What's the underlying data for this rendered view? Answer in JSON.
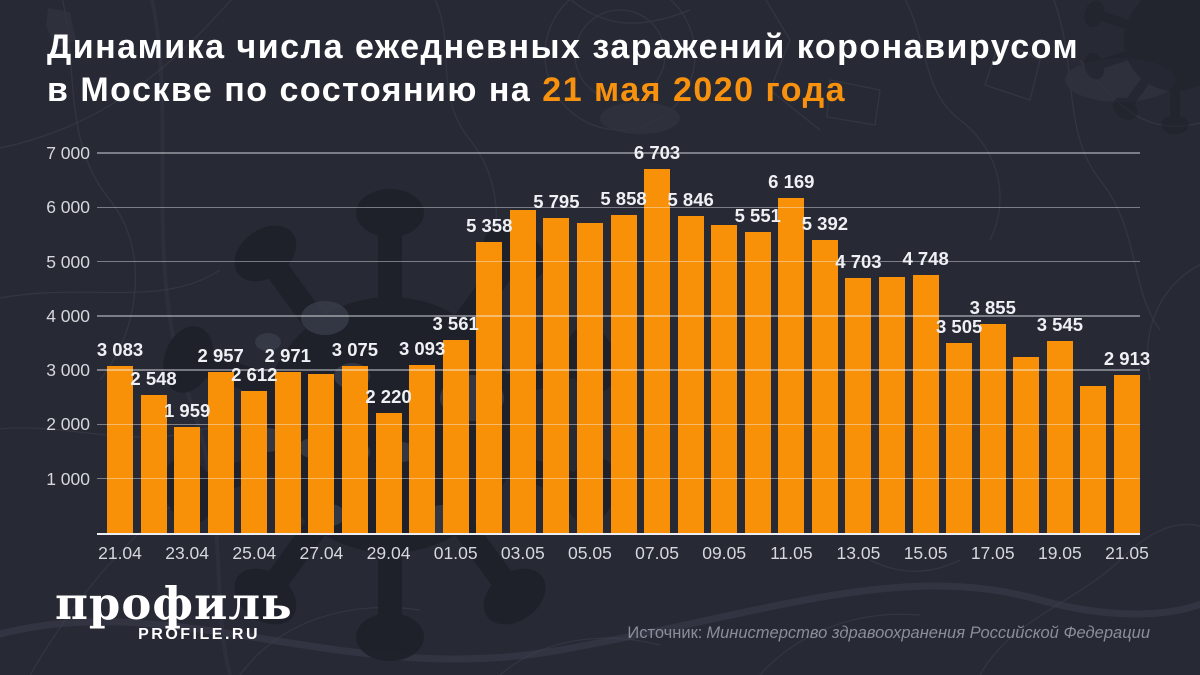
{
  "header": {
    "title_line1": "Динамика числа ежедневных заражений коронавирусом",
    "title_line2_prefix": "в Москве по состоянию на ",
    "title_line2_highlight": "21 мая 2020 года"
  },
  "chart_data": {
    "type": "bar",
    "title": "Динамика числа ежедневных заражений коронавирусом в Москве по состоянию на 21 мая 2020 года",
    "xlabel": "",
    "ylabel": "",
    "ylim": [
      0,
      7000
    ],
    "grid": true,
    "legend": false,
    "bar_color": "#F99108",
    "accent_color": "#F8920E",
    "background_color": "#272934",
    "categories": [
      "21.04",
      "22.04",
      "23.04",
      "24.04",
      "25.04",
      "26.04",
      "27.04",
      "28.04",
      "29.04",
      "30.04",
      "01.05",
      "02.05",
      "03.05",
      "04.05",
      "05.05",
      "06.05",
      "07.05",
      "08.05",
      "09.05",
      "10.05",
      "11.05",
      "12.05",
      "13.05",
      "14.05",
      "15.05",
      "16.05",
      "17.05",
      "18.05",
      "19.05",
      "20.05",
      "21.05"
    ],
    "values": [
      3083,
      2548,
      1959,
      2957,
      2612,
      2971,
      2924,
      3075,
      2220,
      3093,
      3561,
      5358,
      5948,
      5795,
      5714,
      5858,
      6703,
      5846,
      5667,
      5551,
      6169,
      5392,
      4703,
      4712,
      4748,
      3505,
      3855,
      3238,
      3545,
      2699,
      2913
    ],
    "value_labels": [
      "3 083",
      "2 548",
      "1 959",
      "2 957",
      "2 612",
      "2 971",
      null,
      "3 075",
      "2 220",
      "3 093",
      "3 561",
      "5 358",
      null,
      "5 795",
      null,
      "5 858",
      "6 703",
      "5 846",
      null,
      "5 551",
      "6 169",
      "5 392",
      "4 703",
      null,
      "4 748",
      "3 505",
      "3 855",
      null,
      "3 545",
      null,
      "2 913"
    ],
    "yticks": [
      1000,
      2000,
      3000,
      4000,
      5000,
      6000,
      7000
    ],
    "ytick_labels": [
      "1 000",
      "2 000",
      "3 000",
      "4 000",
      "5 000",
      "6 000",
      "7 000"
    ],
    "xtick_labels": [
      "21.04",
      "23.04",
      "25.04",
      "27.04",
      "29.04",
      "01.05",
      "03.05",
      "05.05",
      "07.05",
      "09.05",
      "11.05",
      "13.05",
      "15.05",
      "17.05",
      "19.05",
      "21.05"
    ]
  },
  "footer": {
    "logo_wordmark": "профиль",
    "logo_domain": "PROFILE.RU",
    "source_label": "Источник:",
    "source_value": "Министерство здравоохранения Российской Федерации"
  }
}
